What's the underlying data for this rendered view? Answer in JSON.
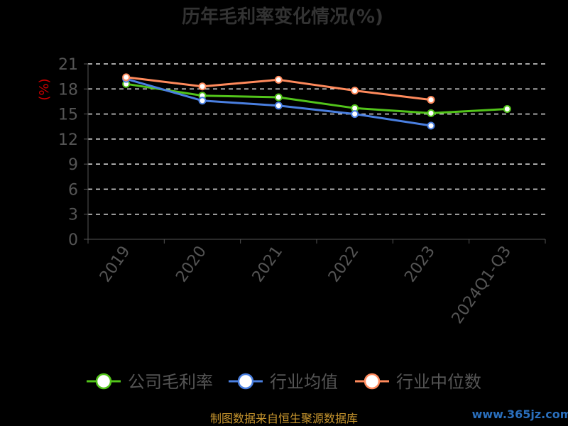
{
  "chart_data": {
    "type": "line",
    "title": "历年毛利率变化情况(%)",
    "ylabel": "(%)",
    "categories": [
      "2019",
      "2020",
      "2021",
      "2022",
      "2023",
      "2024Q1-Q3"
    ],
    "ylim": [
      0,
      21
    ],
    "yticks": [
      0,
      3,
      6,
      9,
      12,
      15,
      18,
      21
    ],
    "grid": true,
    "legend_position": "bottom",
    "series": [
      {
        "name": "公司毛利率",
        "color": "#52c41a",
        "values": [
          18.6,
          17.2,
          17.0,
          15.7,
          15.1,
          15.6
        ]
      },
      {
        "name": "行业均值",
        "color": "#4a7fe0",
        "values": [
          19.2,
          16.6,
          16.0,
          15.0,
          13.6,
          null
        ]
      },
      {
        "name": "行业中位数",
        "color": "#ff8a5c",
        "values": [
          19.4,
          18.3,
          19.1,
          17.8,
          16.7,
          null
        ]
      }
    ]
  },
  "footer": {
    "source": "制图数据来自恒生聚源数据库",
    "watermark": "www.365jz.com"
  }
}
